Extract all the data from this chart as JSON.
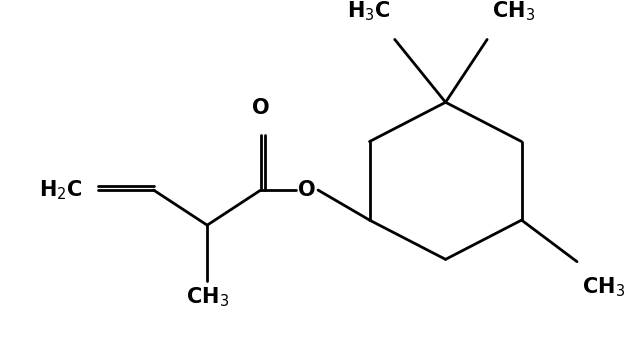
{
  "bg_color": "#ffffff",
  "line_color": "#000000",
  "line_width": 2.0,
  "figsize": [
    6.4,
    3.61
  ],
  "dpi": 100,
  "font_size": 15
}
